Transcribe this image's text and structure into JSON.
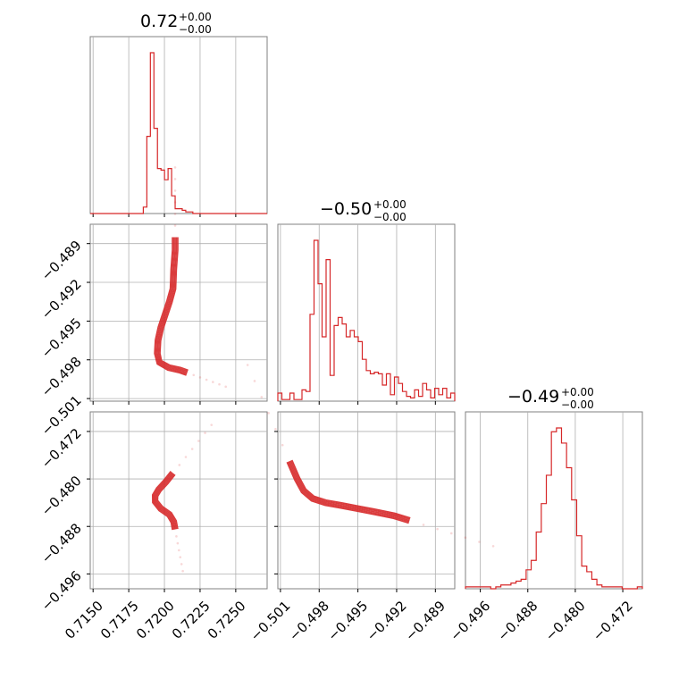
{
  "chart_data": {
    "type": "corner",
    "color": "#d62728",
    "parameters": [
      {
        "title_value": "0.72",
        "title_plus": "+0.00",
        "title_minus": "−0.00"
      },
      {
        "title_value": "−0.50",
        "title_plus": "+0.00",
        "title_minus": "−0.00"
      },
      {
        "title_value": "−0.49",
        "title_plus": "+0.00",
        "title_minus": "−0.00"
      }
    ],
    "axes": {
      "p0": {
        "range": [
          0.7148,
          0.7272
        ],
        "ticks": [
          0.715,
          0.7175,
          0.72,
          0.7225,
          0.725
        ],
        "tick_labels": [
          "0.7150",
          "0.7175",
          "0.7200",
          "0.7225",
          "0.7250"
        ]
      },
      "p1": {
        "range": [
          -0.5012,
          -0.4875
        ],
        "ticks": [
          -0.501,
          -0.498,
          -0.495,
          -0.492,
          -0.489
        ],
        "tick_labels": [
          "−0.501",
          "−0.498",
          "−0.495",
          "−0.492",
          "−0.489"
        ]
      },
      "p2": {
        "range": [
          -0.4985,
          -0.4687
        ],
        "ticks": [
          -0.496,
          -0.488,
          -0.48,
          -0.472
        ],
        "tick_labels": [
          "−0.496",
          "−0.488",
          "−0.480",
          "−0.472"
        ]
      }
    },
    "histograms": [
      {
        "param": "p0",
        "bin_edges_range": [
          0.7148,
          0.7272
        ],
        "counts": [
          0,
          0,
          0,
          0,
          0,
          0,
          0,
          0,
          0,
          0,
          0,
          0,
          0,
          0,
          0,
          4,
          48,
          100,
          53,
          28,
          27,
          21,
          28,
          11,
          3,
          3,
          2,
          1,
          1,
          0,
          0,
          0,
          0,
          0,
          0,
          0,
          0,
          0,
          0,
          0,
          0,
          0,
          0,
          0,
          0,
          0,
          0,
          0,
          0,
          0
        ]
      },
      {
        "param": "p1",
        "bin_edges_range": [
          -0.5012,
          -0.4875
        ],
        "counts": [
          5,
          1,
          1,
          5,
          1,
          1,
          7,
          6,
          54,
          100,
          73,
          40,
          88,
          16,
          47,
          52,
          48,
          40,
          44,
          40,
          37,
          26,
          19,
          17,
          18,
          17,
          10,
          17,
          4,
          15,
          11,
          6,
          3,
          2,
          7,
          3,
          11,
          7,
          2,
          8,
          4,
          8,
          2,
          5
        ]
      },
      {
        "param": "p2",
        "bin_edges_range": [
          -0.4985,
          -0.4687
        ],
        "counts": [
          1,
          1,
          1,
          1,
          1,
          0,
          1,
          2,
          2,
          3,
          4,
          5,
          10,
          15,
          30,
          45,
          60,
          83,
          85,
          77,
          64,
          47,
          28,
          12,
          9,
          5,
          2,
          1,
          1,
          1,
          1,
          0,
          0,
          0,
          1
        ]
      }
    ],
    "contour_panels": [
      {
        "x": "p0",
        "y": "p1",
        "ridge": [
          [
            0.72075,
            -0.4885
          ],
          [
            0.72075,
            -0.4895
          ],
          [
            0.72065,
            -0.491
          ],
          [
            0.7206,
            -0.4925
          ],
          [
            0.72035,
            -0.4935
          ],
          [
            0.72005,
            -0.4945
          ],
          [
            0.71975,
            -0.4955
          ],
          [
            0.71955,
            -0.4965
          ],
          [
            0.7195,
            -0.4975
          ],
          [
            0.71965,
            -0.4982
          ],
          [
            0.7203,
            -0.4986
          ],
          [
            0.7211,
            -0.4988
          ],
          [
            0.7216,
            -0.499
          ]
        ]
      },
      {
        "x": "p0",
        "y": "p2",
        "ridge": [
          [
            0.7206,
            -0.479
          ],
          [
            0.7201,
            -0.4805
          ],
          [
            0.7196,
            -0.4818
          ],
          [
            0.71935,
            -0.4828
          ],
          [
            0.71935,
            -0.4838
          ],
          [
            0.71975,
            -0.485
          ],
          [
            0.72035,
            -0.486
          ],
          [
            0.72065,
            -0.4872
          ],
          [
            0.72075,
            -0.4885
          ]
        ]
      },
      {
        "x": "p1",
        "y": "p2",
        "ridge": [
          [
            -0.5003,
            -0.477
          ],
          [
            -0.4997,
            -0.48
          ],
          [
            -0.4992,
            -0.482
          ],
          [
            -0.4985,
            -0.4833
          ],
          [
            -0.4975,
            -0.484
          ],
          [
            -0.4962,
            -0.4845
          ],
          [
            -0.495,
            -0.485
          ],
          [
            -0.4938,
            -0.4855
          ],
          [
            -0.4922,
            -0.4862
          ],
          [
            -0.491,
            -0.487
          ]
        ]
      }
    ]
  }
}
